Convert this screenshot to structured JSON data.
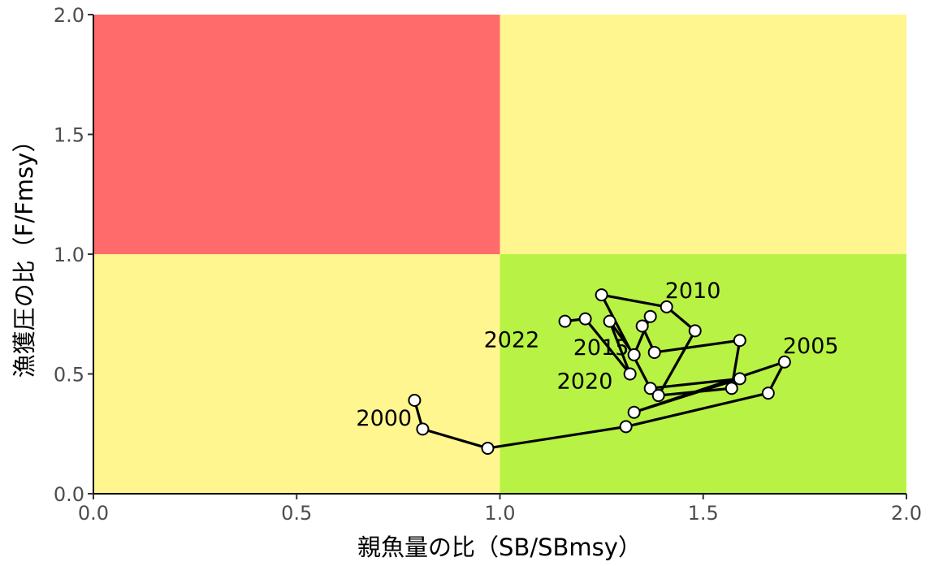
{
  "chart_data": {
    "type": "scatter",
    "title": "",
    "xlabel": "親魚量の比（SB/SBmsy）",
    "ylabel": "漁獲圧の比（F/Fmsy）",
    "xlim": [
      0,
      2
    ],
    "ylim": [
      0,
      2
    ],
    "x_ticks": [
      "0.0",
      "0.5",
      "1.0",
      "1.5",
      "2.0"
    ],
    "y_ticks": [
      "0.0",
      "0.5",
      "1.0",
      "1.5",
      "2.0"
    ],
    "grid": false,
    "zones": [
      {
        "x": [
          0,
          1
        ],
        "y": [
          1,
          2
        ],
        "color": "#FF6B6B"
      },
      {
        "x": [
          1,
          2
        ],
        "y": [
          1,
          2
        ],
        "color": "#FFF68F"
      },
      {
        "x": [
          0,
          1
        ],
        "y": [
          0,
          1
        ],
        "color": "#FFF68F"
      },
      {
        "x": [
          1,
          2
        ],
        "y": [
          0,
          1
        ],
        "color": "#B8F244"
      }
    ],
    "series": [
      {
        "line_color": "#000000",
        "point_fill": "#ffffff",
        "points": [
          {
            "year": 2000,
            "x": 0.79,
            "y": 0.39
          },
          {
            "year": 2001,
            "x": 0.81,
            "y": 0.27
          },
          {
            "year": 2002,
            "x": 0.97,
            "y": 0.19
          },
          {
            "year": 2003,
            "x": 1.31,
            "y": 0.28
          },
          {
            "year": 2004,
            "x": 1.66,
            "y": 0.42
          },
          {
            "year": 2005,
            "x": 1.7,
            "y": 0.55
          },
          {
            "year": 2006,
            "x": 1.33,
            "y": 0.34
          },
          {
            "year": 2007,
            "x": 1.59,
            "y": 0.48
          },
          {
            "year": 2008,
            "x": 1.37,
            "y": 0.44
          },
          {
            "year": 2009,
            "x": 1.25,
            "y": 0.83
          },
          {
            "year": 2010,
            "x": 1.41,
            "y": 0.78
          },
          {
            "year": 2011,
            "x": 1.48,
            "y": 0.68
          },
          {
            "year": 2012,
            "x": 1.39,
            "y": 0.41
          },
          {
            "year": 2013,
            "x": 1.57,
            "y": 0.44
          },
          {
            "year": 2014,
            "x": 1.59,
            "y": 0.64
          },
          {
            "year": 2015,
            "x": 1.38,
            "y": 0.59
          },
          {
            "year": 2016,
            "x": 1.35,
            "y": 0.7
          },
          {
            "year": 2017,
            "x": 1.37,
            "y": 0.74
          },
          {
            "year": 2018,
            "x": 1.33,
            "y": 0.58
          },
          {
            "year": 2019,
            "x": 1.27,
            "y": 0.72
          },
          {
            "year": 2020,
            "x": 1.32,
            "y": 0.5
          },
          {
            "year": 2021,
            "x": 1.21,
            "y": 0.73
          },
          {
            "year": 2022,
            "x": 1.16,
            "y": 0.72
          }
        ]
      }
    ],
    "annotations": [
      {
        "text": "2000",
        "year": 2000
      },
      {
        "text": "2005",
        "year": 2005
      },
      {
        "text": "2010",
        "year": 2010
      },
      {
        "text": "2015",
        "year": 2015
      },
      {
        "text": "2020",
        "year": 2020
      },
      {
        "text": "2022",
        "year": 2022
      }
    ]
  }
}
